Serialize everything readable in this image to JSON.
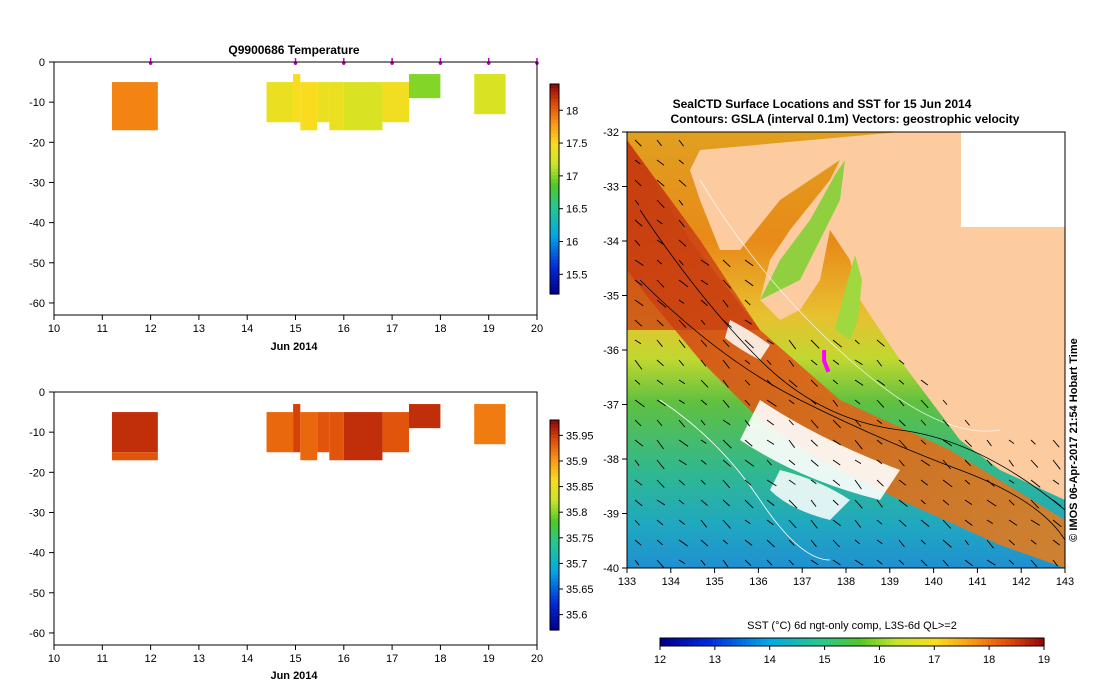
{
  "chart_data": [
    {
      "type": "heatmap",
      "title": "Q9900686  Temperature",
      "xlabel": "Jun 2014",
      "x_ticks": [
        10,
        11,
        12,
        13,
        14,
        15,
        16,
        17,
        18,
        19,
        20
      ],
      "y_ticks": [
        0,
        -10,
        -20,
        -30,
        -40,
        -50,
        -60
      ],
      "xlim": [
        10,
        20
      ],
      "ylim": [
        -63,
        0
      ],
      "colorbar": {
        "min": 15.2,
        "max": 18.4,
        "ticks": [
          15.5,
          16,
          16.5,
          17,
          17.5,
          18
        ]
      },
      "markers_x": [
        12,
        15,
        16,
        17,
        18,
        19,
        20
      ],
      "cells": [
        {
          "x0": 11.2,
          "x1": 12.15,
          "y0": -5,
          "y1": -17,
          "value": 17.9
        },
        {
          "x0": 14.4,
          "x1": 14.95,
          "y0": -5,
          "y1": -15,
          "value": 17.4
        },
        {
          "x0": 14.95,
          "x1": 15.1,
          "y0": -3,
          "y1": -15,
          "value": 17.5
        },
        {
          "x0": 15.1,
          "x1": 15.45,
          "y0": -5,
          "y1": -17,
          "value": 17.5
        },
        {
          "x0": 15.45,
          "x1": 15.7,
          "y0": -5,
          "y1": -15,
          "value": 17.4
        },
        {
          "x0": 15.7,
          "x1": 16.0,
          "y0": -5,
          "y1": -17,
          "value": 17.4
        },
        {
          "x0": 16.0,
          "x1": 16.8,
          "y0": -5,
          "y1": -17,
          "value": 17.3
        },
        {
          "x0": 16.8,
          "x1": 17.35,
          "y0": -5,
          "y1": -15,
          "value": 17.45
        },
        {
          "x0": 17.35,
          "x1": 18.0,
          "y0": -3,
          "y1": -9,
          "value": 17.0
        },
        {
          "x0": 18.7,
          "x1": 19.35,
          "y0": -3,
          "y1": -13,
          "value": 17.3
        }
      ]
    },
    {
      "type": "heatmap",
      "title": "",
      "xlabel": "Jun 2014",
      "x_ticks": [
        10,
        11,
        12,
        13,
        14,
        15,
        16,
        17,
        18,
        19,
        20
      ],
      "y_ticks": [
        0,
        -10,
        -20,
        -30,
        -40,
        -50,
        -60
      ],
      "xlim": [
        10,
        20
      ],
      "ylim": [
        -63,
        0
      ],
      "colorbar": {
        "min": 35.57,
        "max": 35.98,
        "ticks": [
          35.6,
          35.65,
          35.7,
          35.75,
          35.8,
          35.85,
          35.9,
          35.95
        ]
      },
      "cells": [
        {
          "x0": 11.2,
          "x1": 12.15,
          "y0": -5,
          "y1": -15,
          "value": 35.96
        },
        {
          "x0": 11.2,
          "x1": 12.15,
          "y0": -15,
          "y1": -17,
          "value": 35.94
        },
        {
          "x0": 14.4,
          "x1": 14.95,
          "y0": -5,
          "y1": -15,
          "value": 35.93
        },
        {
          "x0": 14.95,
          "x1": 15.1,
          "y0": -3,
          "y1": -15,
          "value": 35.95
        },
        {
          "x0": 15.1,
          "x1": 15.45,
          "y0": -5,
          "y1": -17,
          "value": 35.93
        },
        {
          "x0": 15.45,
          "x1": 15.7,
          "y0": -5,
          "y1": -15,
          "value": 35.94
        },
        {
          "x0": 15.7,
          "x1": 16.0,
          "y0": -5,
          "y1": -17,
          "value": 35.94
        },
        {
          "x0": 16.0,
          "x1": 16.8,
          "y0": -5,
          "y1": -17,
          "value": 35.96
        },
        {
          "x0": 16.8,
          "x1": 17.35,
          "y0": -5,
          "y1": -15,
          "value": 35.94
        },
        {
          "x0": 17.35,
          "x1": 18.0,
          "y0": -3,
          "y1": -9,
          "value": 35.96
        },
        {
          "x0": 18.7,
          "x1": 19.35,
          "y0": -3,
          "y1": -13,
          "value": 35.92
        }
      ]
    },
    {
      "type": "heatmap",
      "title": "SealCTD Surface Locations and SST for 15 Jun 2014",
      "subtitle": "Contours: GSLA (interval 0.1m) Vectors: geostrophic velocity",
      "x_ticks": [
        133,
        134,
        135,
        136,
        137,
        138,
        139,
        140,
        141,
        142,
        143
      ],
      "y_ticks": [
        -32,
        -33,
        -34,
        -35,
        -36,
        -37,
        -38,
        -39,
        -40
      ],
      "xlim": [
        133,
        143
      ],
      "ylim": [
        -40,
        -32
      ],
      "colorbar_label": "SST (°C) 6d ngt-only comp, L3S-6d QL>=2",
      "colorbar": {
        "min": 12,
        "max": 19,
        "ticks": [
          12,
          13,
          14,
          15,
          16,
          17,
          18,
          19
        ]
      },
      "credit": "© IMOS 06-Apr-2017 21:54 Hobart Time",
      "seal_track": [
        [
          137.5,
          -36.0
        ],
        [
          137.5,
          -36.2
        ],
        [
          137.6,
          -36.4
        ]
      ]
    }
  ],
  "colors": {
    "land": "#fccba0",
    "seal_track": "#ff00ff",
    "marker": "#c000c0"
  }
}
